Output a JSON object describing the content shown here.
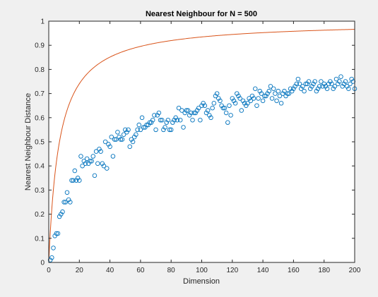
{
  "chart_data": {
    "type": "scatter",
    "title": "Nearest Neighbour for N = 500",
    "xlabel": "Dimension",
    "ylabel": "Nearest Neighbour Distance",
    "xlim": [
      0,
      200
    ],
    "ylim": [
      0,
      1
    ],
    "xticks": [
      0,
      20,
      40,
      60,
      80,
      100,
      120,
      140,
      160,
      180,
      200
    ],
    "xtick_labels": [
      "0",
      "20",
      "40",
      "60",
      "80",
      "100",
      "120",
      "140",
      "160",
      "180",
      "200"
    ],
    "yticks": [
      0,
      0.1,
      0.2,
      0.3,
      0.4,
      0.5,
      0.6,
      0.7,
      0.8,
      0.9,
      1
    ],
    "ytick_labels": [
      "0",
      "0.1",
      "0.2",
      "0.3",
      "0.4",
      "0.5",
      "0.6",
      "0.7",
      "0.8",
      "0.9",
      "1"
    ],
    "grid": false,
    "legend": null,
    "colors": {
      "figure_bg": "#f0f0f0",
      "axes_bg": "#ffffff",
      "scatter": "#0072bd",
      "curve": "#d95319",
      "axis": "#262626"
    },
    "series": [
      {
        "kind": "scatter",
        "marker": "circle",
        "x": [
          1,
          2,
          3,
          4,
          5,
          6,
          7,
          8,
          9,
          10,
          11,
          12,
          13,
          14,
          15,
          16,
          17,
          18,
          19,
          20,
          21,
          22,
          23,
          24,
          25,
          26,
          27,
          28,
          29,
          30,
          31,
          32,
          33,
          34,
          35,
          36,
          37,
          38,
          39,
          40,
          41,
          42,
          43,
          44,
          45,
          46,
          47,
          48,
          49,
          50,
          51,
          52,
          53,
          54,
          55,
          56,
          57,
          58,
          59,
          60,
          61,
          62,
          63,
          64,
          65,
          66,
          67,
          68,
          69,
          70,
          71,
          72,
          73,
          74,
          75,
          76,
          77,
          78,
          79,
          80,
          81,
          82,
          83,
          84,
          85,
          86,
          87,
          88,
          89,
          90,
          91,
          92,
          93,
          94,
          95,
          96,
          97,
          98,
          99,
          100,
          101,
          102,
          103,
          104,
          105,
          106,
          107,
          108,
          109,
          110,
          111,
          112,
          113,
          114,
          115,
          116,
          117,
          118,
          119,
          120,
          121,
          122,
          123,
          124,
          125,
          126,
          127,
          128,
          129,
          130,
          131,
          132,
          133,
          134,
          135,
          136,
          137,
          138,
          139,
          140,
          141,
          142,
          143,
          144,
          145,
          146,
          147,
          148,
          149,
          150,
          151,
          152,
          153,
          154,
          155,
          156,
          157,
          158,
          159,
          160,
          161,
          162,
          163,
          164,
          165,
          166,
          167,
          168,
          169,
          170,
          171,
          172,
          173,
          174,
          175,
          176,
          177,
          178,
          179,
          180,
          181,
          182,
          183,
          184,
          185,
          186,
          187,
          188,
          189,
          190,
          191,
          192,
          193,
          194,
          195,
          196,
          197,
          198,
          199,
          200
        ],
        "y": [
          0.01,
          0.02,
          0.06,
          0.11,
          0.12,
          0.12,
          0.19,
          0.2,
          0.21,
          0.25,
          0.25,
          0.29,
          0.26,
          0.25,
          0.34,
          0.34,
          0.38,
          0.34,
          0.35,
          0.34,
          0.44,
          0.4,
          0.42,
          0.41,
          0.43,
          0.41,
          0.42,
          0.42,
          0.44,
          0.36,
          0.46,
          0.41,
          0.47,
          0.46,
          0.41,
          0.4,
          0.5,
          0.39,
          0.49,
          0.48,
          0.52,
          0.44,
          0.51,
          0.51,
          0.54,
          0.52,
          0.51,
          0.51,
          0.53,
          0.55,
          0.54,
          0.55,
          0.48,
          0.51,
          0.5,
          0.52,
          0.53,
          0.55,
          0.57,
          0.55,
          0.6,
          0.56,
          0.56,
          0.57,
          0.57,
          0.58,
          0.58,
          0.59,
          0.61,
          0.55,
          0.61,
          0.62,
          0.59,
          0.59,
          0.55,
          0.56,
          0.58,
          0.59,
          0.55,
          0.55,
          0.58,
          0.59,
          0.6,
          0.59,
          0.64,
          0.59,
          0.63,
          0.56,
          0.62,
          0.63,
          0.63,
          0.61,
          0.62,
          0.59,
          0.62,
          0.62,
          0.63,
          0.64,
          0.59,
          0.65,
          0.66,
          0.65,
          0.62,
          0.63,
          0.61,
          0.6,
          0.64,
          0.66,
          0.69,
          0.7,
          0.68,
          0.67,
          0.65,
          0.64,
          0.64,
          0.62,
          0.58,
          0.65,
          0.61,
          0.68,
          0.67,
          0.66,
          0.7,
          0.69,
          0.68,
          0.63,
          0.67,
          0.66,
          0.65,
          0.66,
          0.68,
          0.67,
          0.69,
          0.68,
          0.72,
          0.65,
          0.68,
          0.71,
          0.7,
          0.67,
          0.69,
          0.69,
          0.7,
          0.71,
          0.73,
          0.68,
          0.72,
          0.7,
          0.67,
          0.71,
          0.69,
          0.66,
          0.7,
          0.71,
          0.69,
          0.7,
          0.7,
          0.72,
          0.71,
          0.72,
          0.73,
          0.74,
          0.76,
          0.74,
          0.72,
          0.73,
          0.71,
          0.74,
          0.74,
          0.75,
          0.72,
          0.73,
          0.74,
          0.75,
          0.71,
          0.72,
          0.73,
          0.75,
          0.73,
          0.74,
          0.73,
          0.72,
          0.74,
          0.75,
          0.74,
          0.72,
          0.73,
          0.76,
          0.74,
          0.75,
          0.77,
          0.73,
          0.74,
          0.75,
          0.73,
          0.72,
          0.74,
          0.76,
          0.75,
          0.72
        ]
      },
      {
        "kind": "line",
        "formula": "d/(d+7)",
        "x_range": [
          0,
          200
        ]
      }
    ]
  }
}
